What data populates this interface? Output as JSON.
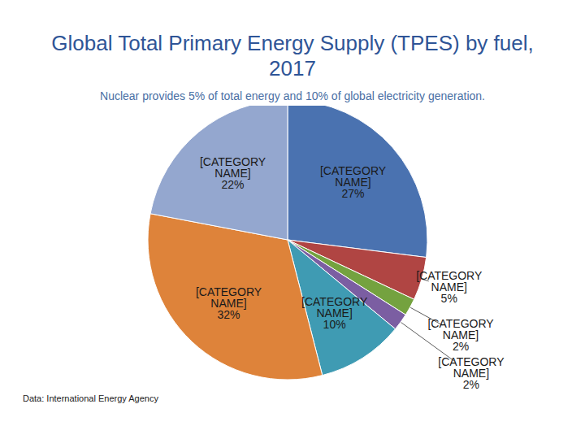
{
  "chart_data": {
    "type": "pie",
    "title": "Global Total Primary Energy Supply (TPES) by fuel, 2017",
    "subtitle": "Nuclear provides 5% of total energy and 10% of global electricity generation.",
    "caption": "Data: International Energy Agency",
    "categories": [
      "[CATEGORY NAME]",
      "[CATEGORY NAME]",
      "[CATEGORY NAME]",
      "[CATEGORY NAME]",
      "[CATEGORY NAME]",
      "[CATEGORY NAME]",
      "[CATEGORY NAME]"
    ],
    "values": [
      27,
      5,
      2,
      2,
      10,
      32,
      22
    ],
    "value_labels": [
      "27%",
      "5%",
      "2%",
      "2%",
      "10%",
      "32%",
      "22%"
    ],
    "colors": [
      "#4a72b0",
      "#b04543",
      "#74a23f",
      "#7b5ea2",
      "#3f9bb3",
      "#de833a",
      "#94a7cf"
    ],
    "data_labels": true
  }
}
